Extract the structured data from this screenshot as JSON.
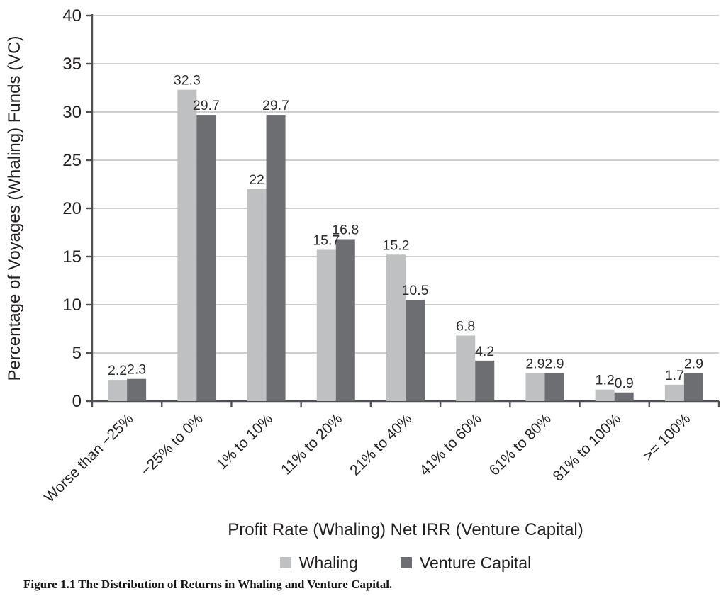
{
  "figure": {
    "caption": "Figure 1.1 The Distribution of Returns in Whaling and Venture Capital."
  },
  "chart_data": {
    "type": "bar",
    "title": "",
    "xlabel": "Profit Rate (Whaling) Net IRR (Venture Capital)",
    "ylabel": "Percentage of Voyages (Whaling) Funds (VC)",
    "categories": [
      "Worse than −25%",
      "−25% to 0%",
      "1% to 10%",
      "11% to 20%",
      "21% to 40%",
      "41% to 60%",
      "61% to 80%",
      "81% to 100%",
      ">= 100%"
    ],
    "series": [
      {
        "name": "Whaling",
        "color": "#bec0c2",
        "values": [
          2.2,
          32.3,
          22,
          15.7,
          15.2,
          6.8,
          2.9,
          1.2,
          1.7
        ]
      },
      {
        "name": "Venture Capital",
        "color": "#6c6e71",
        "values": [
          2.3,
          29.7,
          29.7,
          16.8,
          10.5,
          4.2,
          2.9,
          0.9,
          2.9
        ]
      }
    ],
    "ylim": [
      0,
      40
    ],
    "ytick_step": 5,
    "yticks": [
      "0",
      "5",
      "10",
      "15",
      "20",
      "25",
      "30",
      "35",
      "40"
    ],
    "grid": true,
    "legend_position": "bottom",
    "bar_labels": true,
    "colors": {
      "grid_line": "#bfbfbf",
      "axis_line": "#4f5053",
      "text": "#231f20"
    }
  }
}
